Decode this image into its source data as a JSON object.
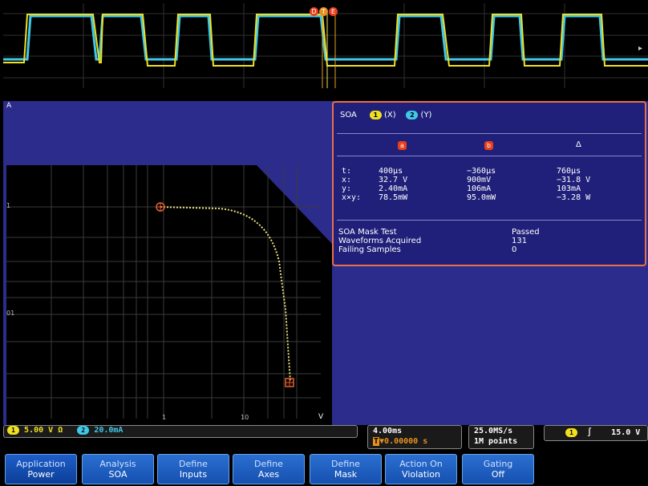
{
  "plot": {
    "corner_label": "A",
    "axis_label_v": "V",
    "y_ticks": [
      "1",
      "01"
    ],
    "x_ticks": [
      "1",
      "10"
    ]
  },
  "soa_panel": {
    "title": "SOA",
    "ch1_badge": "1",
    "ch1_role": "(X)",
    "ch2_badge": "2",
    "ch2_role": "(Y)",
    "cursor_a": "a",
    "cursor_b": "b",
    "delta": "Δ",
    "row_labels": [
      "t:",
      "x:",
      "y:",
      "x×y:"
    ],
    "col_a": [
      "400µs",
      "32.7 V",
      "2.40mA",
      "78.5mW"
    ],
    "col_b": [
      "−360µs",
      "900mV",
      "106mA",
      "95.0mW"
    ],
    "col_delta": [
      "760µs",
      "−31.8 V",
      "103mA",
      "−3.28 W"
    ],
    "results": {
      "labels": [
        "SOA Mask Test",
        "Waveforms Acquired",
        "Failing Samples"
      ],
      "values": [
        "Passed",
        "131",
        "0"
      ]
    }
  },
  "status_bar": {
    "ch1_badge": "1",
    "ch1_scale": "5.00 V",
    "ch1_unit_icon": "Ω",
    "ch2_badge": "2",
    "ch2_scale": "20.0mA",
    "timebase": "4.00ms",
    "trigger_delay": "▼0.00000 s",
    "trigger_delay_icon": "T",
    "sample_rate": "25.0MS/s",
    "record_length": "1M points",
    "trig_ch_badge": "1",
    "trig_slope": "∫",
    "trig_level": "15.0 V"
  },
  "menu": [
    {
      "label": "Application",
      "sub": "Power"
    },
    {
      "label": "Analysis",
      "sub": "SOA"
    },
    {
      "label": "Define",
      "sub": "Inputs"
    },
    {
      "label": "Define",
      "sub": "Axes"
    },
    {
      "label": "Define",
      "sub": "Mask"
    },
    {
      "label": "Action On",
      "sub": "Violation"
    },
    {
      "label": "Gating",
      "sub": "Off"
    }
  ],
  "colors": {
    "ch1": "#f0e020",
    "ch2": "#40c8e8",
    "accent": "#e8401a",
    "plot_bg": "#2c2c8c",
    "panel_border": "#e8704a"
  },
  "top_markers": [
    "D",
    "T",
    "E"
  ]
}
